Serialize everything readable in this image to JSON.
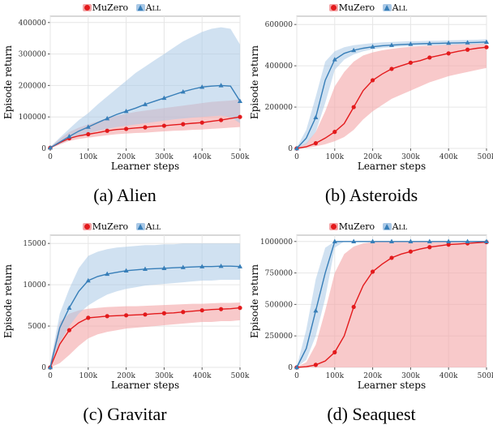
{
  "legend": {
    "series_a": "MuZero",
    "series_b": "All"
  },
  "colors": {
    "muzero": "#e31a1c",
    "muzero_band": "#f4a5a7",
    "all": "#377eb8",
    "all_band": "#a9c8e6",
    "grid": "#e6e6e6",
    "frame": "#b0b0b0"
  },
  "captions": [
    "(a) Alien",
    "(b) Asteroids",
    "(c) Gravitar",
    "(d) Seaquest"
  ],
  "chart_data": [
    {
      "type": "line",
      "title": "",
      "xlabel": "Learner steps",
      "ylabel": "Episode return",
      "xlim": [
        0,
        500000
      ],
      "ylim": [
        0,
        420000
      ],
      "xticks": [
        0,
        100000,
        200000,
        300000,
        400000,
        500000
      ],
      "xtick_labels": [
        "0",
        "100k",
        "200k",
        "300k",
        "400k",
        "500k"
      ],
      "yticks": [
        0,
        100000,
        200000,
        300000,
        400000
      ],
      "ytick_labels": [
        "0",
        "100000",
        "200000",
        "300000",
        "400000"
      ],
      "grid": true,
      "legend_position": "top",
      "x": [
        0,
        25000,
        50000,
        75000,
        100000,
        125000,
        150000,
        175000,
        200000,
        225000,
        250000,
        275000,
        300000,
        325000,
        350000,
        375000,
        400000,
        425000,
        450000,
        475000,
        500000
      ],
      "series": [
        {
          "name": "MuZero",
          "values": [
            2000,
            18000,
            32000,
            40000,
            45000,
            50000,
            56000,
            60000,
            62000,
            65000,
            67000,
            70000,
            72000,
            75000,
            77000,
            80000,
            82000,
            86000,
            90000,
            95000,
            100000
          ],
          "lower": [
            0,
            12000,
            24000,
            30000,
            34000,
            38000,
            42000,
            45000,
            47000,
            49000,
            50000,
            52000,
            54000,
            56000,
            57000,
            59000,
            60000,
            62000,
            64000,
            66000,
            68000
          ],
          "upper": [
            5000,
            30000,
            52000,
            66000,
            76000,
            86000,
            96000,
            104000,
            110000,
            116000,
            120000,
            124000,
            128000,
            132000,
            136000,
            140000,
            144000,
            148000,
            150000,
            152000,
            156000
          ]
        },
        {
          "name": "All",
          "values": [
            2000,
            20000,
            38000,
            55000,
            68000,
            82000,
            95000,
            108000,
            118000,
            128000,
            140000,
            150000,
            160000,
            170000,
            180000,
            188000,
            195000,
            198000,
            200000,
            198000,
            150000
          ],
          "lower": [
            0,
            14000,
            28000,
            40000,
            48000,
            56000,
            62000,
            68000,
            72000,
            76000,
            80000,
            84000,
            88000,
            92000,
            95000,
            98000,
            100000,
            102000,
            104000,
            100000,
            80000
          ],
          "upper": [
            5000,
            34000,
            62000,
            90000,
            112000,
            140000,
            165000,
            190000,
            215000,
            240000,
            260000,
            280000,
            300000,
            320000,
            340000,
            355000,
            370000,
            380000,
            385000,
            380000,
            330000
          ]
        }
      ]
    },
    {
      "type": "line",
      "title": "",
      "xlabel": "Learner steps",
      "ylabel": "Episode return",
      "xlim": [
        0,
        500000
      ],
      "ylim": [
        0,
        640000
      ],
      "xticks": [
        0,
        100000,
        200000,
        300000,
        400000,
        500000
      ],
      "xtick_labels": [
        "0",
        "100k",
        "200k",
        "300k",
        "400k",
        "500k"
      ],
      "yticks": [
        0,
        200000,
        400000,
        600000
      ],
      "ytick_labels": [
        "0",
        "200000",
        "400000",
        "600000"
      ],
      "grid": true,
      "legend_position": "top",
      "x": [
        0,
        25000,
        50000,
        75000,
        100000,
        125000,
        150000,
        175000,
        200000,
        225000,
        250000,
        275000,
        300000,
        325000,
        350000,
        375000,
        400000,
        425000,
        450000,
        475000,
        500000
      ],
      "series": [
        {
          "name": "MuZero",
          "values": [
            0,
            8000,
            25000,
            50000,
            80000,
            120000,
            200000,
            280000,
            330000,
            360000,
            385000,
            400000,
            415000,
            425000,
            440000,
            450000,
            460000,
            470000,
            478000,
            485000,
            490000
          ],
          "lower": [
            0,
            2000,
            10000,
            20000,
            35000,
            55000,
            90000,
            140000,
            180000,
            210000,
            240000,
            260000,
            280000,
            300000,
            320000,
            335000,
            350000,
            360000,
            370000,
            380000,
            390000
          ],
          "upper": [
            5000,
            25000,
            80000,
            180000,
            300000,
            370000,
            420000,
            450000,
            465000,
            475000,
            482000,
            488000,
            492000,
            495000,
            498000,
            500000,
            502000,
            504000,
            505000,
            506000,
            508000
          ]
        },
        {
          "name": "All",
          "values": [
            0,
            50000,
            150000,
            330000,
            430000,
            460000,
            475000,
            485000,
            492000,
            497000,
            500000,
            503000,
            505000,
            507000,
            508000,
            509000,
            510000,
            511000,
            512000,
            513000,
            515000
          ],
          "lower": [
            0,
            20000,
            80000,
            220000,
            380000,
            430000,
            455000,
            470000,
            480000,
            486000,
            490000,
            493000,
            496000,
            498000,
            499000,
            500000,
            501000,
            502000,
            503000,
            504000,
            505000
          ],
          "upper": [
            5000,
            90000,
            250000,
            420000,
            470000,
            490000,
            500000,
            505000,
            510000,
            513000,
            515000,
            517000,
            519000,
            520000,
            521000,
            522000,
            523000,
            524000,
            525000,
            526000,
            528000
          ]
        }
      ]
    },
    {
      "type": "line",
      "title": "",
      "xlabel": "Learner steps",
      "ylabel": "Episode return",
      "xlim": [
        0,
        500000
      ],
      "ylim": [
        0,
        16000
      ],
      "xticks": [
        0,
        100000,
        200000,
        300000,
        400000,
        500000
      ],
      "xtick_labels": [
        "0",
        "100k",
        "200k",
        "300k",
        "400k",
        "500k"
      ],
      "yticks": [
        0,
        5000,
        10000,
        15000
      ],
      "ytick_labels": [
        "0",
        "5000",
        "10000",
        "15000"
      ],
      "grid": true,
      "legend_position": "top",
      "x": [
        0,
        25000,
        50000,
        75000,
        100000,
        125000,
        150000,
        175000,
        200000,
        225000,
        250000,
        275000,
        300000,
        325000,
        350000,
        375000,
        400000,
        425000,
        450000,
        475000,
        500000
      ],
      "series": [
        {
          "name": "MuZero",
          "values": [
            0,
            2800,
            4500,
            5400,
            6000,
            6100,
            6200,
            6250,
            6300,
            6350,
            6400,
            6500,
            6550,
            6600,
            6700,
            6800,
            6900,
            7000,
            7050,
            7100,
            7200
          ],
          "lower": [
            0,
            500,
            1500,
            2600,
            3500,
            4000,
            4300,
            4500,
            4700,
            4800,
            4900,
            5000,
            5100,
            5200,
            5300,
            5400,
            5500,
            5500,
            5600,
            5600,
            5700
          ],
          "upper": [
            500,
            5500,
            6500,
            6900,
            7100,
            7200,
            7300,
            7350,
            7400,
            7400,
            7450,
            7500,
            7550,
            7600,
            7650,
            7700,
            7700,
            7750,
            7800,
            7800,
            7850
          ]
        },
        {
          "name": "All",
          "values": [
            0,
            4800,
            7200,
            9200,
            10500,
            11000,
            11300,
            11500,
            11700,
            11800,
            11900,
            11950,
            12000,
            12050,
            12100,
            12150,
            12200,
            12200,
            12250,
            12250,
            12200
          ],
          "lower": [
            0,
            3000,
            5000,
            6500,
            7500,
            8200,
            8800,
            9200,
            9500,
            9700,
            9900,
            10000,
            10100,
            10200,
            10300,
            10400,
            10500,
            10500,
            10600,
            10600,
            10600
          ],
          "upper": [
            500,
            6500,
            9500,
            12000,
            13500,
            14000,
            14300,
            14500,
            14600,
            14700,
            14800,
            14800,
            14900,
            14900,
            15000,
            15000,
            15000,
            15000,
            15000,
            15000,
            15000
          ]
        }
      ]
    },
    {
      "type": "line",
      "title": "",
      "xlabel": "Learner steps",
      "ylabel": "Episode return",
      "xlim": [
        0,
        500000
      ],
      "ylim": [
        0,
        1050000
      ],
      "xticks": [
        0,
        100000,
        200000,
        300000,
        400000,
        500000
      ],
      "xtick_labels": [
        "0",
        "100k",
        "200k",
        "300k",
        "400k",
        "500k"
      ],
      "yticks": [
        0,
        250000,
        500000,
        750000,
        1000000
      ],
      "ytick_labels": [
        "0",
        "250000",
        "500000",
        "750000",
        "1000000"
      ],
      "grid": true,
      "legend_position": "top",
      "x": [
        0,
        25000,
        50000,
        75000,
        100000,
        125000,
        150000,
        175000,
        200000,
        225000,
        250000,
        275000,
        300000,
        325000,
        350000,
        375000,
        400000,
        425000,
        450000,
        475000,
        500000
      ],
      "series": [
        {
          "name": "MuZero",
          "values": [
            0,
            5000,
            20000,
            50000,
            120000,
            250000,
            480000,
            650000,
            760000,
            820000,
            870000,
            900000,
            920000,
            940000,
            955000,
            965000,
            975000,
            980000,
            985000,
            990000,
            995000
          ],
          "lower": [
            0,
            0,
            0,
            0,
            0,
            0,
            0,
            0,
            0,
            0,
            0,
            0,
            0,
            0,
            0,
            0,
            0,
            0,
            0,
            0,
            0
          ],
          "upper": [
            5000,
            40000,
            180000,
            450000,
            750000,
            900000,
            960000,
            985000,
            995000,
            1000000,
            1000000,
            1000000,
            1000000,
            1000000,
            1000000,
            1000000,
            1000000,
            1000000,
            1000000,
            1000000,
            1000000
          ]
        },
        {
          "name": "All",
          "values": [
            0,
            150000,
            450000,
            750000,
            1000000,
            1000000,
            1000000,
            1000000,
            1000000,
            1000000,
            1000000,
            1000000,
            1000000,
            1000000,
            1000000,
            1000000,
            1000000,
            1000000,
            1000000,
            1000000,
            1000000
          ],
          "lower": [
            0,
            60000,
            250000,
            550000,
            950000,
            1000000,
            1000000,
            1000000,
            1000000,
            1000000,
            1000000,
            1000000,
            1000000,
            1000000,
            1000000,
            1000000,
            1000000,
            1000000,
            1000000,
            1000000,
            1000000
          ],
          "upper": [
            5000,
            300000,
            700000,
            950000,
            1000000,
            1000000,
            1000000,
            1000000,
            1000000,
            1000000,
            1000000,
            1000000,
            1000000,
            1000000,
            1000000,
            1000000,
            1000000,
            1000000,
            1000000,
            1000000,
            1000000
          ]
        }
      ]
    }
  ]
}
